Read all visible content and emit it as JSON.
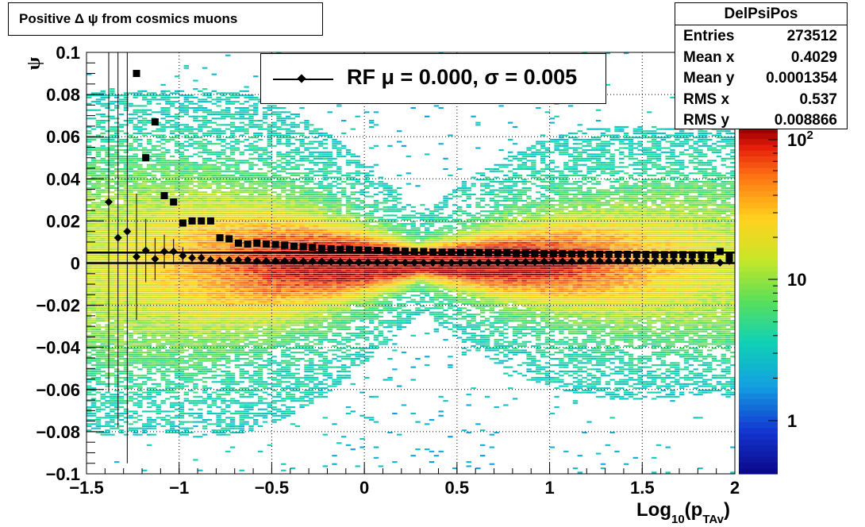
{
  "hist_title": "Positive Δ ψ from cosmics muons",
  "stats": {
    "name": "DelPsiPos",
    "rows": [
      {
        "label": "Entries",
        "value": "273512"
      },
      {
        "label": "Mean x",
        "value": "0.4029"
      },
      {
        "label": "Mean y",
        "value": "0.0001354"
      },
      {
        "label": "RMS x",
        "value": "0.537"
      },
      {
        "label": "RMS y",
        "value": "0.008866"
      }
    ]
  },
  "legend": {
    "label": "RF μ =  0.000, σ =   0.005"
  },
  "chart_data": {
    "type": "heatmap",
    "title": "Positive Δ ψ from cosmics muons",
    "xlabel": "Log10(pTAv)",
    "ylabel": "ψ",
    "xlim": [
      -1.5,
      2
    ],
    "ylim": [
      -0.1,
      0.1
    ],
    "zscale": "log",
    "z_ticks": [
      "1",
      "10",
      "10^2"
    ],
    "grid": true,
    "x_ticks": [
      -1.5,
      -1,
      -0.5,
      0,
      0.5,
      1,
      1.5,
      2
    ],
    "y_ticks": [
      -0.1,
      -0.08,
      -0.06,
      -0.04,
      -0.02,
      0,
      0.02,
      0.04,
      0.06,
      0.08,
      0.1
    ],
    "x_tick_labels": [
      "−1.5",
      "−1",
      "−0.5",
      "0",
      "0.5",
      "1",
      "1.5",
      "2"
    ],
    "y_tick_labels": [
      "−0.1",
      "−0.08",
      "−0.06",
      "−0.04",
      "−0.02",
      "0",
      "0.02",
      "0.04",
      "0.06",
      "0.08",
      "0.1"
    ],
    "density_model": {
      "y_center": 0.0,
      "sigma_min": 0.004,
      "sigma_max": 0.03,
      "x_peak": 0.3
    },
    "ref_lines": [
      {
        "name": "rms",
        "y": 0.005
      },
      {
        "name": "mean",
        "y": 0.0
      }
    ],
    "series": [
      {
        "name": "RF",
        "marker": "diamond",
        "x": [
          -1.38,
          -1.33,
          -1.28,
          -1.23,
          -1.18,
          -1.13,
          -1.08,
          -1.03,
          -0.98,
          -0.93,
          -0.88,
          -0.83,
          -0.78,
          -0.73,
          -0.68,
          -0.63,
          -0.58,
          -0.53,
          -0.48,
          -0.43,
          -0.38,
          -0.33,
          -0.28,
          -0.23,
          -0.18,
          -0.13,
          -0.08,
          -0.03,
          0.02,
          0.07,
          0.12,
          0.17,
          0.22,
          0.27,
          0.32,
          0.37,
          0.42,
          0.47,
          0.52,
          0.57,
          0.62,
          0.67,
          0.72,
          0.77,
          0.82,
          0.87,
          0.92,
          0.97,
          1.02,
          1.07,
          1.12,
          1.17,
          1.22,
          1.27,
          1.32,
          1.37,
          1.42,
          1.47,
          1.52,
          1.57,
          1.62,
          1.67,
          1.72,
          1.77,
          1.82,
          1.87,
          1.92,
          1.97
        ],
        "y": [
          0.029,
          0.012,
          0.015,
          0.003,
          0.006,
          0.002,
          0.0055,
          0.0055,
          0.0035,
          0.0025,
          0.0025,
          0.0015,
          0.001,
          0.0015,
          0.0015,
          0.0015,
          0.001,
          0.001,
          0.001,
          0.001,
          0.001,
          0.0008,
          0.0008,
          0.0008,
          0.0006,
          0.0006,
          0.0005,
          0.0004,
          0.0004,
          0.0004,
          0.0003,
          0.0003,
          0.0002,
          0.0002,
          0.0002,
          0.0002,
          0.0002,
          0.0002,
          0.0002,
          0.0002,
          0.0002,
          0.0003,
          0.0003,
          0.0003,
          0.0003,
          0.0005,
          0.0005,
          0.0008,
          0.0008,
          0.0008,
          0.0008,
          0.001,
          0.001,
          0.001,
          0.001,
          0.001,
          0.001,
          0.001,
          0.001,
          0.001,
          0.001,
          0.001,
          0.001,
          0.001,
          0.0012,
          0.0012,
          0.0002,
          0.001
        ],
        "err": [
          0.09,
          0.09,
          0.11,
          0.03,
          0.015,
          0.01,
          0.008,
          0.006,
          0.004,
          0.003,
          0.003,
          0.002,
          0.002,
          0.001,
          0.001,
          0.001,
          0.001,
          0.001,
          0.001,
          0.001,
          0.001,
          0.001,
          0.001,
          0.001,
          0.001,
          0.001,
          0.001,
          0.001,
          0.001,
          0.001,
          0.001,
          0.001,
          0.001,
          0.001,
          0.001,
          0.001,
          0.001,
          0.001,
          0.001,
          0.001,
          0.001,
          0.001,
          0.001,
          0.001,
          0.001,
          0.001,
          0.001,
          0.001,
          0.001,
          0.001,
          0.001,
          0.001,
          0.001,
          0.001,
          0.001,
          0.001,
          0.001,
          0.001,
          0.001,
          0.001,
          0.001,
          0.001,
          0.001,
          0.001,
          0.001,
          0.001,
          0.001,
          0.001
        ]
      },
      {
        "name": "sigma",
        "marker": "square",
        "x": [
          -1.23,
          -1.18,
          -1.13,
          -1.08,
          -1.03,
          -0.98,
          -0.93,
          -0.88,
          -0.83,
          -0.78,
          -0.73,
          -0.68,
          -0.63,
          -0.58,
          -0.53,
          -0.48,
          -0.43,
          -0.38,
          -0.33,
          -0.28,
          -0.23,
          -0.18,
          -0.13,
          -0.08,
          -0.03,
          0.02,
          0.07,
          0.12,
          0.17,
          0.22,
          0.27,
          0.32,
          0.37,
          0.42,
          0.47,
          0.52,
          0.57,
          0.62,
          0.67,
          0.72,
          0.77,
          0.82,
          0.87,
          0.92,
          0.97,
          1.02,
          1.07,
          1.12,
          1.17,
          1.22,
          1.27,
          1.32,
          1.37,
          1.42,
          1.47,
          1.52,
          1.57,
          1.62,
          1.67,
          1.72,
          1.77,
          1.82,
          1.87,
          1.92,
          1.97
        ],
        "y": [
          0.09,
          0.05,
          0.067,
          0.032,
          0.029,
          0.019,
          0.02,
          0.02,
          0.02,
          0.012,
          0.0115,
          0.0095,
          0.009,
          0.0095,
          0.009,
          0.0088,
          0.0085,
          0.008,
          0.0078,
          0.0075,
          0.007,
          0.0068,
          0.0065,
          0.0065,
          0.0063,
          0.0062,
          0.006,
          0.0058,
          0.0058,
          0.0056,
          0.0055,
          0.0055,
          0.0053,
          0.0052,
          0.0052,
          0.005,
          0.005,
          0.005,
          0.0048,
          0.0048,
          0.0048,
          0.0047,
          0.0046,
          0.0046,
          0.0045,
          0.0045,
          0.0045,
          0.0044,
          0.0044,
          0.0043,
          0.0043,
          0.0042,
          0.0042,
          0.0042,
          0.0041,
          0.0041,
          0.004,
          0.004,
          0.004,
          0.004,
          0.0039,
          0.0039,
          0.0038,
          0.0055,
          0.003
        ]
      }
    ]
  }
}
